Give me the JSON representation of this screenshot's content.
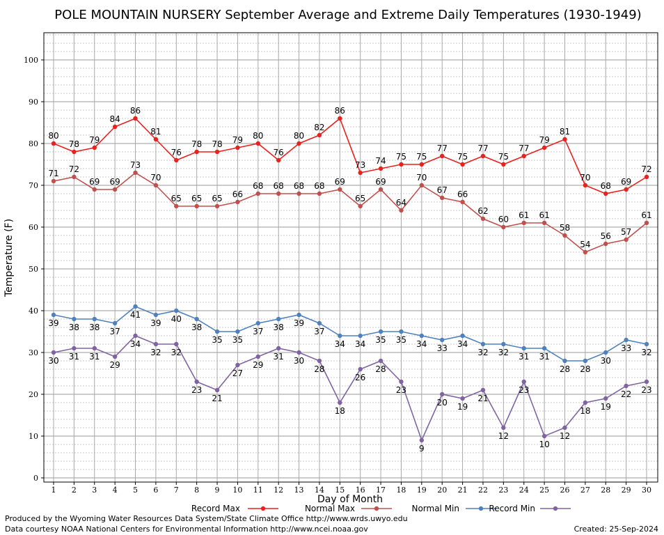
{
  "chart_data": {
    "type": "line",
    "title": "POLE MOUNTAIN NURSERY September Average and Extreme Daily Temperatures (1930-1949)",
    "xlabel": "Day of Month",
    "ylabel": "Temperature (F)",
    "xlim": [
      1,
      30
    ],
    "ylim": [
      0,
      106
    ],
    "ytick_step": 10,
    "grid": true,
    "legend_position": "bottom",
    "x": [
      1,
      2,
      3,
      4,
      5,
      6,
      7,
      8,
      9,
      10,
      11,
      12,
      13,
      14,
      15,
      16,
      17,
      18,
      19,
      20,
      21,
      22,
      23,
      24,
      25,
      26,
      27,
      28,
      29,
      30
    ],
    "series": [
      {
        "name": "Record Max",
        "color": "#e8221f",
        "label_pos": "above",
        "values": [
          80,
          78,
          79,
          84,
          86,
          81,
          76,
          78,
          78,
          79,
          80,
          76,
          80,
          82,
          86,
          73,
          74,
          75,
          75,
          77,
          75,
          77,
          75,
          77,
          79,
          81,
          70,
          68,
          69,
          72
        ]
      },
      {
        "name": "Normal Max",
        "color": "#c0504d",
        "label_pos": "above",
        "values": [
          71,
          72,
          69,
          69,
          73,
          70,
          65,
          65,
          65,
          66,
          68,
          68,
          68,
          68,
          69,
          65,
          69,
          64,
          70,
          67,
          66,
          62,
          60,
          61,
          61,
          58,
          54,
          56,
          57,
          61
        ]
      },
      {
        "name": "Normal Min",
        "color": "#4f81bd",
        "label_pos": "below",
        "values": [
          39,
          38,
          38,
          37,
          41,
          39,
          40,
          38,
          35,
          35,
          37,
          38,
          39,
          37,
          34,
          34,
          35,
          35,
          34,
          33,
          34,
          32,
          32,
          31,
          31,
          28,
          28,
          30,
          33,
          32
        ]
      },
      {
        "name": "Record Min",
        "color": "#8064a2",
        "label_pos": "below",
        "values": [
          30,
          31,
          31,
          29,
          34,
          32,
          32,
          23,
          21,
          27,
          29,
          31,
          30,
          28,
          18,
          26,
          28,
          23,
          9,
          20,
          19,
          21,
          12,
          23,
          10,
          12,
          18,
          19,
          22,
          23
        ]
      }
    ]
  },
  "footer": {
    "line1": "Produced by the Wyoming Water Resources Data System/State Climate Office http://www.wrds.uwyo.edu",
    "line2": "Data courtesy NOAA National Centers for Environmental Information http://www.ncei.noaa.gov",
    "created": "Created:  25-Sep-2024"
  }
}
